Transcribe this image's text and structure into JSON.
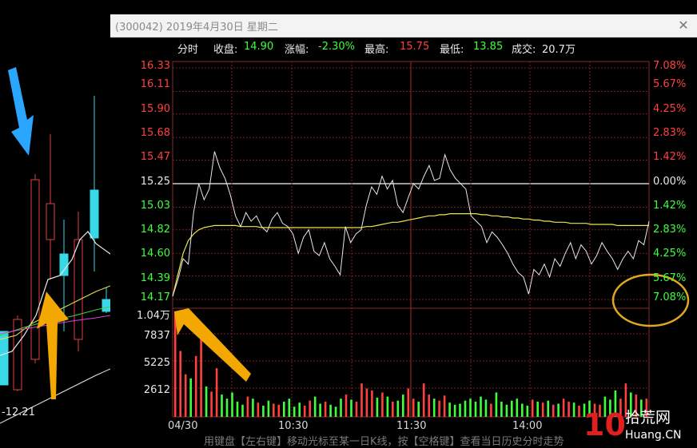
{
  "left_chart": {
    "bottom_label": "12.21"
  },
  "window": {
    "title": "(300042) 2019年4月30日 星期二",
    "close_glyph": "✕"
  },
  "info_bar": {
    "mode": "分时",
    "close_label": "收盘:",
    "close_value": "14.90",
    "change_label": "涨幅:",
    "change_value": "-2.30%",
    "high_label": "最高:",
    "high_value": "15.75",
    "low_label": "最低:",
    "low_value": "13.85",
    "volume_label": "成交:",
    "volume_value": "20.7万"
  },
  "price_axis": {
    "prices": [
      "16.33",
      "16.11",
      "15.90",
      "15.68",
      "15.47",
      "15.25",
      "15.03",
      "14.82",
      "14.60",
      "14.39",
      "14.17"
    ],
    "percents": [
      "7.08%",
      "5.67%",
      "4.25%",
      "2.83%",
      "1.42%",
      "0.00%",
      "1.42%",
      "2.83%",
      "4.25%",
      "5.67%",
      "7.08%"
    ]
  },
  "volume_axis": {
    "labels": [
      "1.04万",
      "7837",
      "5225",
      "2612"
    ]
  },
  "time_axis": {
    "labels": [
      "04/30",
      "10:30",
      "11:30",
      "14:00"
    ]
  },
  "status_text": "用键盘【左右键】移动光标至某一日K线，按【空格键】查看当日历史分时走势",
  "watermark": {
    "digits": "10",
    "brand": "拾荒网",
    "sub": "Huang.CN"
  },
  "colors": {
    "up": "#ff4040",
    "down": "#3dff3d",
    "avg_line": "#e8e84a",
    "price_line": "#e8e8e8",
    "grid": "#7a1f1f",
    "annotation_arrow": "#f2a800",
    "blue_arrow": "#2aa6ff",
    "circle": "#e0a820"
  },
  "chart_data": {
    "type": "line",
    "title": "",
    "xlabel": "",
    "ylabel": "",
    "x_ticks": [
      "04/30",
      "10:30",
      "11:30",
      "14:00"
    ],
    "ylim": [
      14.17,
      16.33
    ],
    "reference_price": 15.25,
    "series": [
      {
        "values": [
          14.2,
          14.35,
          14.55,
          14.5,
          14.98,
          15.25,
          15.1,
          15.2,
          15.55,
          15.4,
          15.3,
          15.15,
          14.95,
          14.85,
          14.98,
          14.9,
          14.95,
          14.85,
          14.8,
          14.92,
          14.98,
          14.88,
          14.85,
          14.78,
          14.6,
          14.75,
          14.82,
          14.62,
          14.58,
          14.7,
          14.55,
          14.48,
          14.4,
          14.85,
          14.7,
          14.78,
          14.82,
          15.05,
          15.22,
          15.15,
          15.32,
          15.2,
          15.28,
          15.05,
          14.98,
          15.12,
          15.25,
          15.2,
          15.32,
          15.42,
          15.28,
          15.3,
          15.52,
          15.38,
          15.3,
          15.25,
          15.2,
          14.95,
          14.9,
          14.85,
          14.7,
          14.8,
          14.75,
          14.68,
          14.6,
          14.5,
          14.42,
          14.38,
          14.22,
          14.45,
          14.4,
          14.5,
          14.38,
          14.55,
          14.48,
          14.6,
          14.7,
          14.55,
          14.68,
          14.62,
          14.5,
          14.58,
          14.7,
          14.62,
          14.55,
          14.45,
          14.55,
          14.62,
          14.55,
          14.72,
          14.68,
          14.9
        ]
      },
      {
        "values": [
          14.2,
          14.4,
          14.6,
          14.72,
          14.78,
          14.82,
          14.84,
          14.85,
          14.86,
          14.86,
          14.86,
          14.86,
          14.86,
          14.85,
          14.85,
          14.85,
          14.85,
          14.84,
          14.84,
          14.84,
          14.84,
          14.84,
          14.84,
          14.84,
          14.84,
          14.84,
          14.84,
          14.84,
          14.84,
          14.84,
          14.84,
          14.84,
          14.84,
          14.84,
          14.84,
          14.84,
          14.84,
          14.85,
          14.85,
          14.86,
          14.87,
          14.88,
          14.89,
          14.89,
          14.9,
          14.91,
          14.92,
          14.93,
          14.94,
          14.95,
          14.95,
          14.96,
          14.96,
          14.97,
          14.97,
          14.97,
          14.97,
          14.97,
          14.97,
          14.96,
          14.96,
          14.95,
          14.95,
          14.94,
          14.94,
          14.93,
          14.93,
          14.92,
          14.92,
          14.91,
          14.91,
          14.9,
          14.9,
          14.89,
          14.89,
          14.89,
          14.88,
          14.88,
          14.88,
          14.88,
          14.87,
          14.87,
          14.87,
          14.87,
          14.87,
          14.86,
          14.86,
          14.86,
          14.86,
          14.86,
          14.86,
          14.86
        ]
      }
    ],
    "volume": {
      "ylim": [
        0,
        10400
      ],
      "values": [
        10400,
        6500,
        4200,
        3800,
        6000,
        7800,
        3000,
        2500,
        4800,
        2200,
        1800,
        2400,
        1500,
        1200,
        2000,
        1800,
        1400,
        1100,
        1600,
        1300,
        1200,
        1500,
        1800,
        1000,
        1400,
        1100,
        1600,
        2000,
        1300,
        1500,
        1200,
        1000,
        1800,
        2200,
        1700,
        1500,
        3300,
        2800,
        2600,
        1900,
        2400,
        2000,
        1500,
        1600,
        2200,
        2800,
        1800,
        1500,
        3300,
        2200,
        1800,
        1600,
        2100,
        1400,
        1200,
        1300,
        1600,
        1800,
        1500,
        2000,
        1700,
        1300,
        2400,
        1500,
        1200,
        1600,
        1800,
        1300,
        1100,
        1700,
        1500,
        1400,
        1600,
        1200,
        1300,
        1800,
        1500,
        1400,
        1100,
        1300,
        1600,
        1300,
        1200,
        2000,
        1700,
        2600,
        1800,
        3300,
        2400,
        2200,
        1700,
        1800
      ]
    }
  }
}
